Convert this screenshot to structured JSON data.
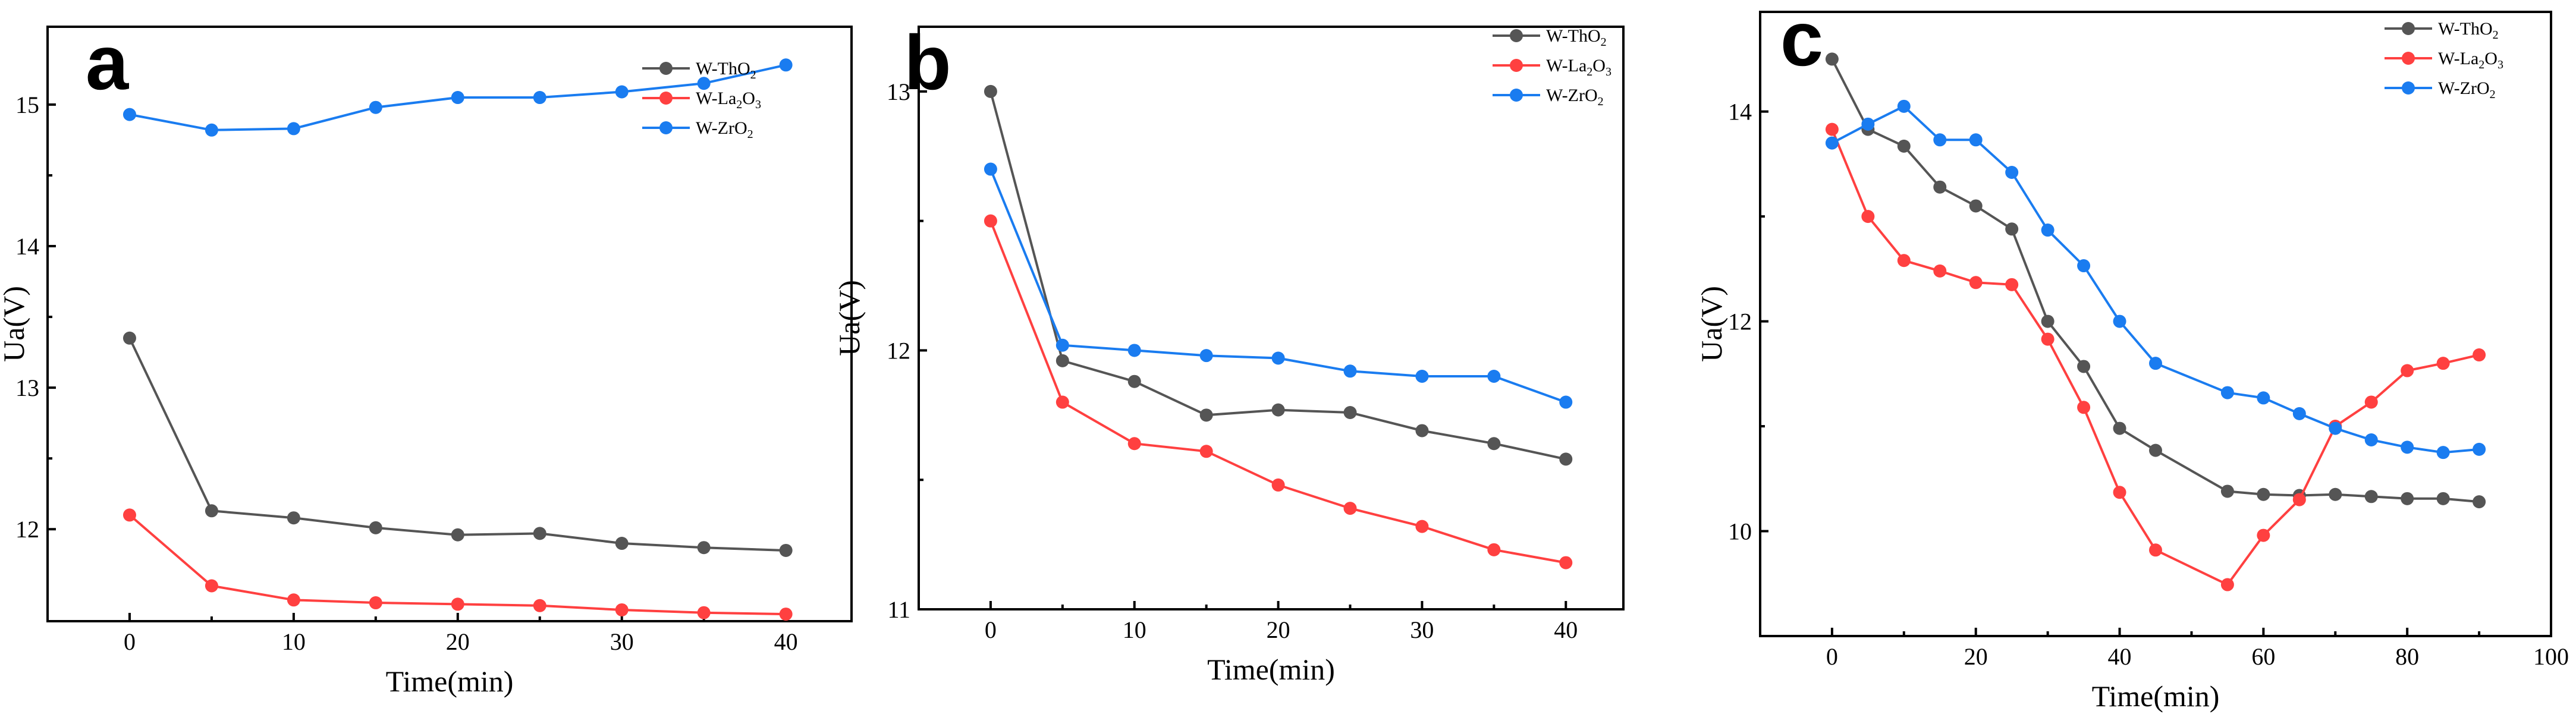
{
  "chart_data": [
    {
      "type": "line",
      "panel_label": "a",
      "xlabel": "Time(min)",
      "ylabel": "Ua(V)",
      "xlim": [
        -5,
        44
      ],
      "ylim": [
        11.35,
        15.55
      ],
      "xticks": [
        0,
        10,
        20,
        30,
        40
      ],
      "yticks": [
        12,
        13,
        14,
        15
      ],
      "legend_position": "upper-right",
      "series": [
        {
          "name": "W-ThO",
          "subscript": "2",
          "color": "#555555",
          "x": [
            0,
            5,
            10,
            15,
            20,
            25,
            30,
            35,
            40
          ],
          "values": [
            13.35,
            12.13,
            12.08,
            12.01,
            11.96,
            11.97,
            11.9,
            11.87,
            11.85
          ]
        },
        {
          "name": "W-La",
          "subscript": "2",
          "suffix": "O",
          "subscript2": "3",
          "color": "#ff4040",
          "x": [
            0,
            5,
            10,
            15,
            20,
            25,
            30,
            35,
            40
          ],
          "values": [
            12.1,
            11.6,
            11.5,
            11.48,
            11.47,
            11.46,
            11.43,
            11.41,
            11.4
          ]
        },
        {
          "name": "W-ZrO",
          "subscript": "2",
          "color": "#1a7cf0",
          "x": [
            0,
            5,
            10,
            15,
            20,
            25,
            30,
            35,
            40
          ],
          "values": [
            14.93,
            14.82,
            14.83,
            14.98,
            15.05,
            15.05,
            15.09,
            15.15,
            15.28
          ]
        }
      ]
    },
    {
      "type": "line",
      "panel_label": "b",
      "xlabel": "Time(min)",
      "ylabel": "Ua(V)",
      "xlim": [
        -5,
        44
      ],
      "ylim": [
        11.0,
        13.25
      ],
      "xticks": [
        0,
        10,
        20,
        30,
        40
      ],
      "yticks": [
        11,
        12,
        13
      ],
      "legend_position": "upper-right",
      "series": [
        {
          "name": "W-ThO",
          "subscript": "2",
          "color": "#555555",
          "x": [
            0,
            5,
            10,
            15,
            20,
            25,
            30,
            35,
            40
          ],
          "values": [
            13.0,
            11.96,
            11.88,
            11.75,
            11.77,
            11.76,
            11.69,
            11.64,
            11.58
          ]
        },
        {
          "name": "W-La",
          "subscript": "2",
          "suffix": "O",
          "subscript2": "3",
          "color": "#ff4040",
          "x": [
            0,
            5,
            10,
            15,
            20,
            25,
            30,
            35,
            40
          ],
          "values": [
            12.5,
            11.8,
            11.64,
            11.61,
            11.48,
            11.39,
            11.32,
            11.23,
            11.18
          ]
        },
        {
          "name": "W-ZrO",
          "subscript": "2",
          "color": "#1a7cf0",
          "x": [
            0,
            5,
            10,
            15,
            20,
            25,
            30,
            35,
            40
          ],
          "values": [
            12.7,
            12.02,
            12.0,
            11.98,
            11.97,
            11.92,
            11.9,
            11.9,
            11.8
          ]
        }
      ]
    },
    {
      "type": "line",
      "panel_label": "c",
      "xlabel": "Time(min)",
      "ylabel": "Ua(V)",
      "xlim": [
        -10,
        100
      ],
      "ylim": [
        9.0,
        14.95
      ],
      "xticks": [
        0,
        20,
        40,
        60,
        80,
        100
      ],
      "yticks": [
        10,
        12,
        14
      ],
      "legend_position": "upper-right",
      "series": [
        {
          "name": "W-ThO",
          "subscript": "2",
          "color": "#555555",
          "x": [
            0,
            5,
            10,
            15,
            20,
            25,
            30,
            35,
            40,
            45,
            55,
            60,
            65,
            70,
            75,
            80,
            85,
            90
          ],
          "values": [
            14.5,
            13.83,
            13.67,
            13.28,
            13.1,
            12.88,
            12.0,
            11.57,
            10.98,
            10.77,
            10.38,
            10.35,
            10.34,
            10.35,
            10.33,
            10.31,
            10.31,
            10.28
          ]
        },
        {
          "name": "W-La",
          "subscript": "2",
          "suffix": "O",
          "subscript2": "3",
          "color": "#ff4040",
          "x": [
            0,
            5,
            10,
            15,
            20,
            25,
            30,
            35,
            40,
            45,
            55,
            60,
            65,
            70,
            75,
            80,
            85,
            90
          ],
          "values": [
            13.83,
            13.0,
            12.58,
            12.48,
            12.37,
            12.35,
            11.83,
            11.18,
            10.37,
            9.82,
            9.49,
            9.96,
            10.3,
            11.0,
            11.23,
            11.53,
            11.6,
            11.68
          ]
        },
        {
          "name": "W-ZrO",
          "subscript": "2",
          "color": "#1a7cf0",
          "x": [
            0,
            5,
            10,
            15,
            20,
            25,
            30,
            35,
            40,
            45,
            55,
            60,
            65,
            70,
            75,
            80,
            85,
            90
          ],
          "values": [
            13.7,
            13.88,
            14.05,
            13.73,
            13.73,
            13.42,
            12.87,
            12.53,
            12.0,
            11.6,
            11.32,
            11.27,
            11.12,
            10.98,
            10.87,
            10.8,
            10.75,
            10.78
          ]
        }
      ]
    }
  ]
}
